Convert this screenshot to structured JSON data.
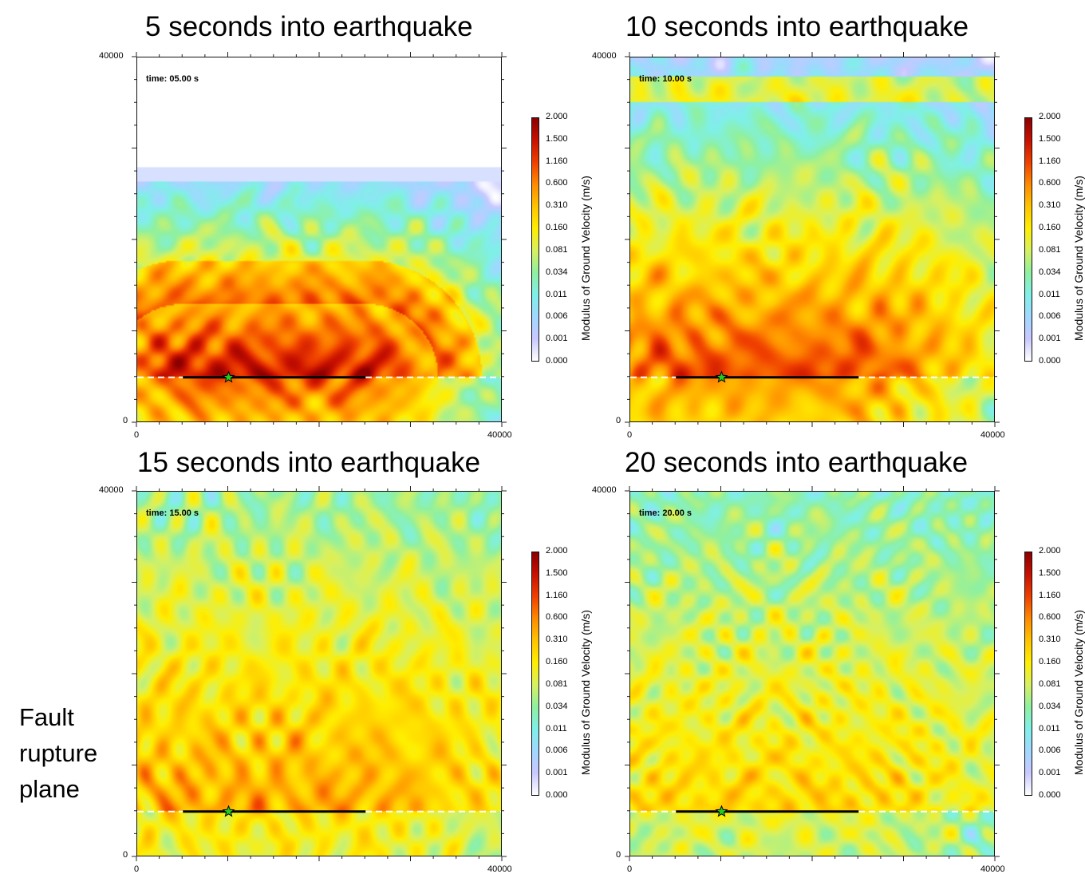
{
  "chart_data": [
    {
      "type": "heatmap",
      "title": "5 seconds into earthquake",
      "annotation": "time: 05.00 s",
      "time_s": 5,
      "x_ticks": [
        "0",
        "40000"
      ],
      "y_ticks": [
        "0",
        "40000"
      ],
      "xlim": [
        0,
        40000
      ],
      "ylim": [
        0,
        40000
      ],
      "wavefront_y": 28000,
      "fault": {
        "y": 5000,
        "x_start": 5000,
        "x_end": 25000,
        "hypocenter_x": 10000
      },
      "colorbar": {
        "label": "Modulus of Ground Velocity (m/s)",
        "ticks": [
          "2.000",
          "1.500",
          "1.160",
          "0.600",
          "0.310",
          "0.160",
          "0.081",
          "0.034",
          "0.011",
          "0.006",
          "0.001",
          "0.000"
        ]
      }
    },
    {
      "type": "heatmap",
      "title": "10 seconds into earthquake",
      "annotation": "time: 10.00 s",
      "time_s": 10,
      "x_ticks": [
        "0",
        "40000"
      ],
      "y_ticks": [
        "0",
        "40000"
      ],
      "xlim": [
        0,
        40000
      ],
      "ylim": [
        0,
        40000
      ],
      "wavefront_y": 40000,
      "fault": {
        "y": 5000,
        "x_start": 5000,
        "x_end": 25000,
        "hypocenter_x": 10000
      },
      "colorbar": {
        "label": "Modulus of Ground Velocity (m/s)",
        "ticks": [
          "2.000",
          "1.500",
          "1.160",
          "0.600",
          "0.310",
          "0.160",
          "0.081",
          "0.034",
          "0.011",
          "0.006",
          "0.001",
          "0.000"
        ]
      }
    },
    {
      "type": "heatmap",
      "title": "15 seconds into earthquake",
      "annotation": "time: 15.00 s",
      "time_s": 15,
      "x_ticks": [
        "0",
        "40000"
      ],
      "y_ticks": [
        "0",
        "40000"
      ],
      "xlim": [
        0,
        40000
      ],
      "ylim": [
        0,
        40000
      ],
      "wavefront_y": 40000,
      "fault": {
        "y": 5000,
        "x_start": 5000,
        "x_end": 25000,
        "hypocenter_x": 10000
      },
      "colorbar": {
        "label": "Modulus of Ground Velocity (m/s)",
        "ticks": [
          "2.000",
          "1.500",
          "1.160",
          "0.600",
          "0.310",
          "0.160",
          "0.081",
          "0.034",
          "0.011",
          "0.006",
          "0.001",
          "0.000"
        ]
      }
    },
    {
      "type": "heatmap",
      "title": "20 seconds into earthquake",
      "annotation": "time: 20.00 s",
      "time_s": 20,
      "x_ticks": [
        "0",
        "40000"
      ],
      "y_ticks": [
        "0",
        "40000"
      ],
      "xlim": [
        0,
        40000
      ],
      "ylim": [
        0,
        40000
      ],
      "wavefront_y": 40000,
      "fault": {
        "y": 5000,
        "x_start": 5000,
        "x_end": 25000,
        "hypocenter_x": 10000
      },
      "colorbar": {
        "label": "Modulus of Ground Velocity (m/s)",
        "ticks": [
          "2.000",
          "1.500",
          "1.160",
          "0.600",
          "0.310",
          "0.160",
          "0.081",
          "0.034",
          "0.011",
          "0.006",
          "0.001",
          "0.000"
        ]
      }
    }
  ],
  "side_label": {
    "line1": "Fault",
    "line2": "rupture",
    "line3": "plane"
  },
  "colors": {
    "colorbar_stops": [
      "#ffffff",
      "#c8c8ff",
      "#a0d8ff",
      "#7ff0e8",
      "#8ff0a0",
      "#d8f060",
      "#ffee00",
      "#ffc400",
      "#ff8a00",
      "#f04000",
      "#c81000",
      "#8b0000"
    ],
    "fault_line": "#000000",
    "hypocenter": "#22cc22",
    "fault_plane_dash": "#ffffff"
  }
}
